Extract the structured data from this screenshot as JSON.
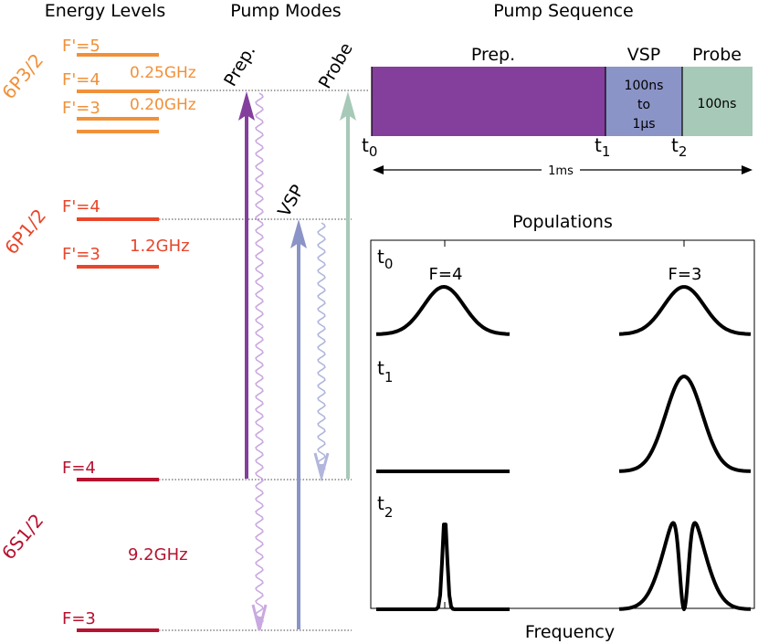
{
  "headers": {
    "energy_levels": "Energy Levels",
    "pump_modes": "Pump Modes",
    "pump_sequence": "Pump Sequence",
    "populations": "Populations",
    "frequency": "Frequency"
  },
  "manifolds": {
    "p32": "6P3/2",
    "p12": "6P1/2",
    "s12": "6S1/2"
  },
  "levels": {
    "p32_f5": "F'=5",
    "p32_f4": "F'=4",
    "p32_f3": "F'=3",
    "p12_f4": "F'=4",
    "p12_f3": "F'=3",
    "s12_f4": "F=4",
    "s12_f3": "F=3"
  },
  "splittings": {
    "p32_54": "0.25GHz",
    "p32_43": "0.20GHz",
    "p12": "1.2GHz",
    "s12": "9.2GHz"
  },
  "pump_modes": {
    "prep": "Prep.",
    "probe": "Probe",
    "vsp": "VSP"
  },
  "sequence": {
    "prep": "Prep.",
    "vsp": "VSP",
    "probe": "Probe",
    "vsp_line1": "100ns",
    "vsp_line2": "to",
    "vsp_line3": "1μs",
    "probe_duration": "100ns",
    "t_base": "t",
    "sub0": "0",
    "sub1": "1",
    "sub2": "2",
    "total": "1ms"
  },
  "populations": {
    "f4": "F=4",
    "f3": "F=3",
    "t_base": "t",
    "sub0": "0",
    "sub1": "1",
    "sub2": "2"
  },
  "colors": {
    "p32": "#f0913a",
    "p12": "#e8462b",
    "s12": "#b7122f",
    "prep": "#843f9c",
    "vsp": "#8b94c7",
    "probe": "#a7c9b8",
    "decay": "#c9a9e0",
    "decay_vsp": "#b1b6dc"
  }
}
